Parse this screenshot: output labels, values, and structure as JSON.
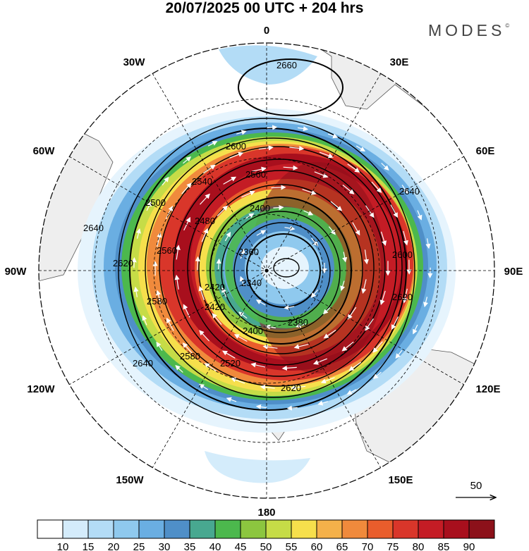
{
  "header": {
    "title": "20/07/2025  00 UTC  + 204 hrs",
    "brand": "MODES"
  },
  "map": {
    "projection": "polar-stereographic-south",
    "longitude_labels": {
      "top": "0",
      "top_right": "30E",
      "right_upper": "60E",
      "right": "90E",
      "right_lower": "120E",
      "bottom_right": "150E",
      "bottom": "180",
      "bottom_left": "150W",
      "left_lower": "120W",
      "left": "90W",
      "left_upper": "60W",
      "top_left": "30W"
    },
    "geopotential_contour_labels": [
      "2660",
      "2600",
      "2560",
      "2540",
      "2500",
      "2480",
      "2400",
      "2360",
      "2340",
      "2420",
      "2560",
      "2620",
      "2580",
      "2640",
      "2640",
      "2600",
      "2620",
      "2580",
      "2380",
      "2400",
      "2420",
      "2520",
      "2620",
      "2640"
    ],
    "reference_vector_label": "50",
    "colors": {
      "land": "#eeeeee",
      "coast": "#555555",
      "contour": "#000000",
      "wind_arrow": "#ffffff"
    }
  },
  "colorbar": {
    "ticks": [
      "10",
      "15",
      "20",
      "25",
      "30",
      "35",
      "40",
      "45",
      "50",
      "55",
      "60",
      "65",
      "70",
      "75",
      "80",
      "85",
      "90"
    ],
    "colors": [
      "#ffffff",
      "#d4ecfb",
      "#b3dcf6",
      "#8fc9ee",
      "#6aaee2",
      "#4f8fc8",
      "#48a890",
      "#4cb84d",
      "#8cc63f",
      "#c6dc47",
      "#f6df4c",
      "#f4b14a",
      "#f08a3c",
      "#e95d2c",
      "#d9362a",
      "#c41c25",
      "#a80f1d",
      "#8c111a"
    ]
  }
}
